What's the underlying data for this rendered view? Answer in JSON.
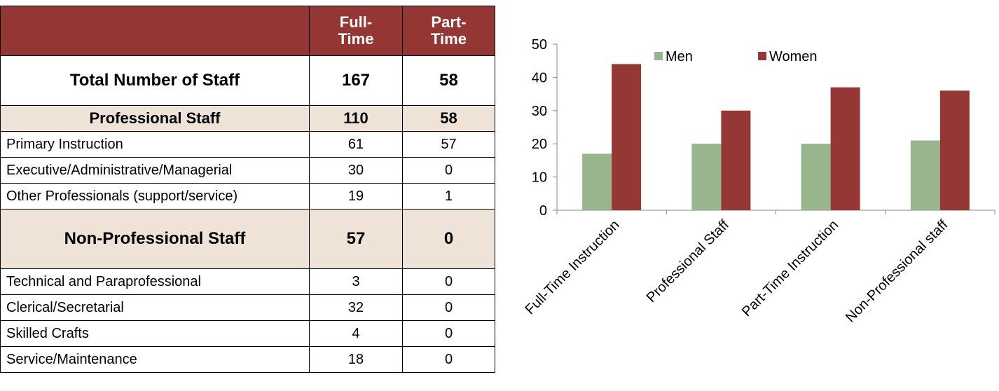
{
  "table": {
    "header": [
      "Full-Time",
      "Part-Time"
    ],
    "rows": [
      [
        "Total Number of Staff",
        167,
        58
      ],
      [
        "Professional Staff",
        110,
        58
      ],
      [
        "Primary Instruction",
        61,
        57
      ],
      [
        "Executive/Administrative/Managerial",
        30,
        0
      ],
      [
        "Other Professionals (support/service)",
        19,
        1
      ],
      [
        "Non-Professional Staff",
        57,
        0
      ],
      [
        "Technical and Paraprofessional",
        3,
        0
      ],
      [
        "Clerical/Secretarial",
        32,
        0
      ],
      [
        "Skilled Crafts",
        4,
        0
      ],
      [
        "Service/Maintenance",
        18,
        0
      ]
    ]
  },
  "chart_data": {
    "type": "bar",
    "categories": [
      "Full-Time Instruction",
      "Professional Staff",
      "Part-Time Instruction",
      "Non-Professional staff"
    ],
    "series": [
      {
        "name": "Men",
        "color": "#98b58e",
        "values": [
          17,
          20,
          20,
          21
        ]
      },
      {
        "name": "Women",
        "color": "#953735",
        "values": [
          44,
          30,
          37,
          36
        ]
      }
    ],
    "ylim": [
      0,
      50
    ],
    "yticks": [
      0,
      10,
      20,
      30,
      40,
      50
    ],
    "legend": "top"
  }
}
